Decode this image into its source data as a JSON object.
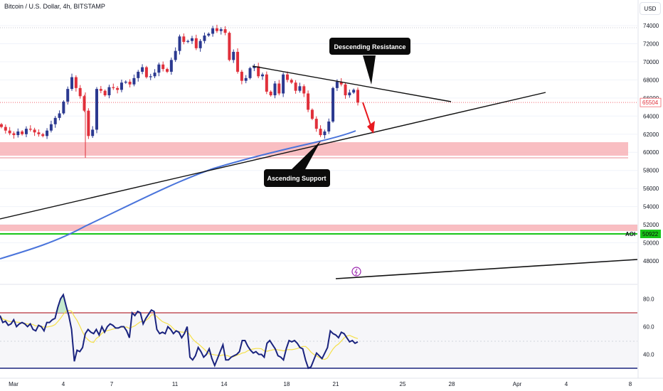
{
  "header": {
    "title": "Bitcoin / U.S. Dollar, 4h, BITSTAMP",
    "currency": "USD"
  },
  "colors": {
    "up": "#2b3990",
    "down": "#e0303b",
    "ma": "#4a74db",
    "rsi": "#1a237e",
    "rsi_ma": "#f5e04a",
    "zone": "#f7a8ae",
    "aoi": "#19c619",
    "resistance_dot": "#f1646c"
  },
  "chart_data": [
    {
      "type": "candlestick",
      "title": "Bitcoin / U.S. Dollar, 4h, BITSTAMP",
      "ylim": [
        47000,
        75000
      ],
      "y_ticks": [
        "74000",
        "72000",
        "70000",
        "68000",
        "66000",
        "64000",
        "62000",
        "60000",
        "58000",
        "56000",
        "54000",
        "52000",
        "50000",
        "48000"
      ],
      "x_ticks": [
        "Mar",
        "4",
        "7",
        "11",
        "14",
        "18",
        "21",
        "25",
        "28",
        "Apr",
        "4",
        "8"
      ],
      "current_price": {
        "label": "65504",
        "value": 65504
      },
      "aoi": {
        "label": "AOI",
        "value": 50922,
        "price_label": "50922"
      },
      "zones": [
        {
          "from": 59500,
          "to": 61100
        },
        {
          "from": 51500,
          "to": 52200
        }
      ],
      "annotations": [
        {
          "text": "Descending Resistance"
        },
        {
          "text": "Ascending Support"
        }
      ],
      "close_series": [
        62800,
        62400,
        62100,
        61900,
        62300,
        62000,
        62600,
        62500,
        62200,
        62000,
        61800,
        62400,
        63100,
        63800,
        64300,
        65600,
        67000,
        68300,
        67100,
        66200,
        64600,
        61800,
        62500,
        67000,
        66800,
        66300,
        67200,
        67100,
        66900,
        67700,
        67800,
        67500,
        68200,
        68900,
        69400,
        68300,
        68400,
        68800,
        69700,
        69200,
        68900,
        70200,
        71200,
        72800,
        72200,
        72300,
        72600,
        71500,
        72300,
        72900,
        73100,
        73700,
        73400,
        73600,
        73200,
        70200,
        71100,
        68900,
        67900,
        68200,
        69300,
        69500,
        68400,
        68600,
        66700,
        66300,
        67600,
        66500,
        68600,
        68000,
        67700,
        66800,
        67300,
        66500,
        64700,
        63700,
        62600,
        61900,
        62300,
        63400,
        67100,
        67800,
        67500,
        66300,
        66600,
        66900,
        65500
      ]
    },
    {
      "type": "line",
      "title": "RSI",
      "ylim": [
        30,
        95
      ],
      "y_ticks": [
        "80.0",
        "60.0",
        "40.0"
      ],
      "levels": [
        70,
        30
      ],
      "series": [
        {
          "values": [
            68,
            63,
            64,
            61,
            62,
            65,
            60,
            62,
            63,
            62,
            60,
            62,
            58,
            57,
            61,
            60,
            57,
            63,
            63,
            65,
            66,
            74,
            80,
            83,
            75,
            68,
            58,
            35,
            43,
            42,
            45,
            55,
            58,
            56,
            55,
            58,
            54,
            60,
            56,
            60,
            62,
            61,
            59,
            59,
            60,
            60,
            57,
            52,
            70,
            68,
            71,
            70,
            62,
            66,
            69,
            72,
            71,
            58,
            55,
            56,
            55,
            60,
            58,
            55,
            57,
            56,
            52,
            55,
            60,
            38,
            36,
            39,
            45,
            42,
            38,
            40,
            44,
            37,
            32,
            37,
            42,
            47,
            36,
            36,
            38,
            39,
            40,
            42,
            50,
            50,
            46,
            43,
            41,
            42,
            40,
            40,
            38,
            48,
            50,
            47,
            44,
            39,
            38,
            36,
            44,
            50,
            49,
            50,
            48,
            45,
            44,
            36,
            30,
            31,
            36,
            41,
            39,
            37,
            41,
            45,
            57,
            55,
            54,
            52,
            56,
            55,
            52,
            49,
            50,
            48,
            49
          ]
        }
      ]
    }
  ]
}
